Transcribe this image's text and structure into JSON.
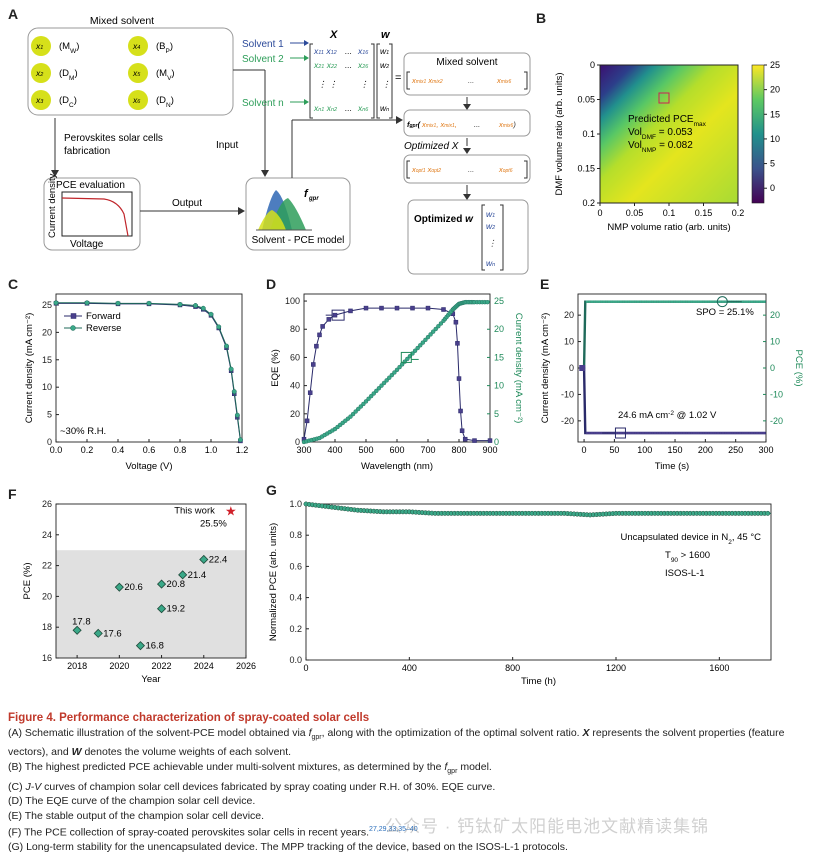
{
  "panelA": {
    "label": "A",
    "mixed_solvent_title": "Mixed solvent",
    "solvents": [
      {
        "id": "x1",
        "sub": "1",
        "prop": "(M",
        "propsub": "W",
        "col": 0
      },
      {
        "id": "x2",
        "sub": "2",
        "prop": "(D",
        "propsub": "M",
        "col": 0
      },
      {
        "id": "x3",
        "sub": "3",
        "prop": "(D",
        "propsub": "C",
        "col": 0
      },
      {
        "id": "x4",
        "sub": "4",
        "prop": "(B",
        "propsub": "P",
        "col": 1
      },
      {
        "id": "x5",
        "sub": "5",
        "prop": "(M",
        "propsub": "V",
        "col": 1
      },
      {
        "id": "x6",
        "sub": "6",
        "prop": "(D",
        "propsub": "N",
        "col": 1
      }
    ],
    "fabrication_label": "Perovskites solar cells fabrication",
    "pce_eval_title": "PCE evaluation",
    "pce_eval_ylabel": "Current density",
    "pce_eval_xlabel": "Voltage",
    "input_label": "Input",
    "output_label": "Output",
    "model_label": "Solvent - PCE model",
    "fgpr": "f",
    "fgpr_sub": "gpr",
    "matrix_x_label": "X",
    "matrix_w_label": "w",
    "solvent_rows": [
      "Solvent 1",
      "Solvent 2",
      "Solvent n"
    ],
    "mixed_solvent_box": "Mixed solvent",
    "optimized_x_label": "Optimized X",
    "optimized_w_label": "Optimized w",
    "colors": {
      "blue": "#2c4a9a",
      "green": "#2e9e5a",
      "orange": "#e07b1a",
      "node": "#d6e01a"
    }
  },
  "panelB": {
    "label": "B",
    "xlabel": "NMP volume ratio (arb. units)",
    "ylabel": "DMF volume ratio (arb. units)",
    "xticks": [
      "0",
      "0.05",
      "0.1",
      "0.15",
      "0.2"
    ],
    "yticks": [
      "0",
      "0.05",
      "0.1",
      "0.15",
      "0.2"
    ],
    "cbar_ticks": [
      "25",
      "20",
      "15",
      "10",
      "5",
      "0"
    ],
    "annotation": [
      "Predicted PCE",
      "Vol",
      "Vol"
    ],
    "ann_sub": [
      "max",
      "DMF",
      "NMP"
    ],
    "ann_vals": [
      "",
      " = 0.053",
      " = 0.082"
    ]
  },
  "chart_data": [
    {
      "type": "heatmap",
      "panel": "B",
      "title": "",
      "xlabel": "NMP volume ratio (arb. units)",
      "ylabel": "DMF volume ratio (arb. units)",
      "xlim": [
        0,
        0.2
      ],
      "ylim": [
        0,
        0.2
      ],
      "colorbar_range": [
        -3,
        25
      ],
      "optimum": {
        "NMP": 0.082,
        "DMF": 0.053,
        "PCE": 25
      }
    },
    {
      "type": "line",
      "panel": "C",
      "xlabel": "Voltage (V)",
      "ylabel": "Current density (mA cm⁻²)",
      "xlim": [
        0,
        1.2
      ],
      "ylim": [
        0,
        27
      ],
      "xticks": [
        "0.0",
        "0.2",
        "0.4",
        "0.6",
        "0.8",
        "1.0",
        "1.2"
      ],
      "yticks": [
        "0",
        "5",
        "10",
        "15",
        "20",
        "25"
      ],
      "annotation": "~30% R.H.",
      "series": [
        {
          "name": "Forward",
          "x": [
            0,
            0.2,
            0.4,
            0.6,
            0.8,
            0.9,
            0.95,
            1.0,
            1.05,
            1.1,
            1.13,
            1.15,
            1.17,
            1.19
          ],
          "y": [
            25.3,
            25.3,
            25.2,
            25.2,
            25.0,
            24.7,
            24.2,
            23.1,
            20.8,
            17.2,
            13.0,
            8.8,
            4.5,
            0.2
          ]
        },
        {
          "name": "Reverse",
          "x": [
            0,
            0.2,
            0.4,
            0.6,
            0.8,
            0.9,
            0.95,
            1.0,
            1.05,
            1.1,
            1.13,
            1.15,
            1.17,
            1.19
          ],
          "y": [
            25.4,
            25.4,
            25.3,
            25.3,
            25.1,
            24.9,
            24.4,
            23.3,
            21.0,
            17.5,
            13.3,
            9.2,
            4.9,
            0.4
          ]
        }
      ]
    },
    {
      "type": "line",
      "panel": "D",
      "xlabel": "Wavelength (nm)",
      "ylabel": "EQE (%)",
      "y2label": "Current density (mA cm⁻²)",
      "xlim": [
        300,
        900
      ],
      "ylim": [
        0,
        105
      ],
      "y2lim": [
        0,
        26.25
      ],
      "xticks": [
        "300",
        "400",
        "500",
        "600",
        "700",
        "800",
        "900"
      ],
      "yticks": [
        "0",
        "20",
        "40",
        "60",
        "80",
        "100"
      ],
      "y2ticks": [
        "0",
        "5",
        "10",
        "15",
        "20",
        "25"
      ],
      "series": [
        {
          "name": "EQE",
          "x": [
            300,
            310,
            320,
            330,
            340,
            350,
            360,
            380,
            400,
            450,
            500,
            550,
            600,
            650,
            700,
            750,
            780,
            790,
            795,
            800,
            805,
            810,
            820,
            850,
            900
          ],
          "y": [
            2,
            15,
            35,
            55,
            68,
            76,
            82,
            87,
            90,
            93,
            95,
            95,
            95,
            95,
            95,
            94,
            91,
            85,
            70,
            45,
            22,
            8,
            2,
            1,
            1
          ]
        },
        {
          "name": "Integrated Jsc",
          "x": [
            300,
            350,
            400,
            450,
            500,
            550,
            600,
            650,
            700,
            750,
            780,
            800,
            820,
            850,
            900
          ],
          "y": [
            0,
            0.7,
            2.3,
            4.5,
            7.2,
            10.0,
            12.8,
            15.7,
            18.6,
            21.5,
            23.5,
            24.5,
            24.8,
            24.8,
            24.8
          ]
        }
      ]
    },
    {
      "type": "line",
      "panel": "E",
      "xlabel": "Time (s)",
      "ylabel": "Current density (mA cm⁻²)",
      "y2label": "PCE (%)",
      "xlim": [
        -10,
        300
      ],
      "ylim": [
        -28,
        28
      ],
      "xticks": [
        "0",
        "50",
        "100",
        "150",
        "200",
        "250",
        "300"
      ],
      "yticks": [
        "20",
        "10",
        "0",
        "-10",
        "-20"
      ],
      "y2ticks": [
        "20",
        "10",
        "0",
        "-10",
        "-20"
      ],
      "annotations": [
        "SPO = 25.1%",
        "24.6 mA cm⁻² @ 1.02 V"
      ],
      "series": [
        {
          "name": "Current density",
          "x": [
            -5,
            0,
            2,
            300
          ],
          "y": [
            0,
            0,
            -24.6,
            -24.6
          ]
        },
        {
          "name": "PCE",
          "x": [
            -5,
            0,
            2,
            300
          ],
          "y": [
            0,
            0,
            25.1,
            25.1
          ]
        }
      ]
    },
    {
      "type": "scatter",
      "panel": "F",
      "xlabel": "Year",
      "ylabel": "PCE (%)",
      "xlim": [
        2017,
        2026
      ],
      "ylim": [
        16,
        26
      ],
      "xticks": [
        "2018",
        "2020",
        "2022",
        "2024",
        "2026"
      ],
      "yticks": [
        "16",
        "18",
        "20",
        "22",
        "24",
        "26"
      ],
      "points": [
        {
          "x": 2018,
          "y": 17.8,
          "label": "17.8"
        },
        {
          "x": 2019,
          "y": 17.6,
          "label": "17.6"
        },
        {
          "x": 2020,
          "y": 20.6,
          "label": "20.6"
        },
        {
          "x": 2021,
          "y": 16.8,
          "label": "16.8"
        },
        {
          "x": 2022,
          "y": 19.2,
          "label": "19.2"
        },
        {
          "x": 2022,
          "y": 20.8,
          "label": "20.8"
        },
        {
          "x": 2023,
          "y": 21.4,
          "label": "21.4"
        },
        {
          "x": 2024,
          "y": 22.4,
          "label": "22.4"
        }
      ],
      "this_work": {
        "x": 2025,
        "y": 25.5,
        "label": "This work",
        "value": "25.5%"
      },
      "shaded_below": 23
    },
    {
      "type": "line",
      "panel": "G",
      "xlabel": "Time (h)",
      "ylabel": "Normalized PCE (arb. units)",
      "xlim": [
        0,
        1800
      ],
      "ylim": [
        0,
        1.0
      ],
      "xticks": [
        "0",
        "400",
        "800",
        "1200",
        "1600"
      ],
      "yticks": [
        "1.0",
        "0.8",
        "0.6",
        "0.4",
        "0.2",
        "0.0"
      ],
      "annotations": [
        "Uncapsulated device in N",
        "T",
        "ISOS-L-1"
      ],
      "series": [
        {
          "name": "MPP tracking",
          "x": [
            0,
            100,
            200,
            300,
            400,
            500,
            600,
            700,
            800,
            900,
            1000,
            1100,
            1200,
            1300,
            1400,
            1500,
            1600,
            1700,
            1800
          ],
          "y": [
            1.0,
            0.98,
            0.96,
            0.95,
            0.95,
            0.94,
            0.94,
            0.94,
            0.94,
            0.94,
            0.94,
            0.93,
            0.94,
            0.94,
            0.94,
            0.94,
            0.94,
            0.94,
            0.94
          ]
        }
      ]
    }
  ],
  "panelC": {
    "label": "C",
    "legend": [
      "Forward",
      "Reverse"
    ],
    "annotation": "~30% R.H."
  },
  "panelD": {
    "label": "D"
  },
  "panelE": {
    "label": "E",
    "spo": "SPO = 25.1%",
    "jv": "24.6 mA cm",
    "jv_sup": "-2",
    "jv_tail": " @ 1.02 V"
  },
  "panelF": {
    "label": "F",
    "this_work": "This work",
    "this_val": "25.5%"
  },
  "panelG": {
    "label": "G",
    "ann1": "Uncapsulated device in N",
    "ann1_sub": "2",
    "ann1_tail": ", 45 °C",
    "ann2": "T",
    "ann2_sub": "90",
    "ann2_tail": " > 1600",
    "ann3": "ISOS-L-1"
  },
  "caption": {
    "title": "Figure 4.  Performance characterization of spray-coated solar cells",
    "a1": "(A) Schematic illustration of the solvent-PCE model obtained via ",
    "a_f": "f",
    "a_fsub": "gpr",
    "a2": ", along with the optimization of the optimal solvent ratio. ",
    "a_X": "X",
    "a3": " represents the solvent properties (feature vectors), and ",
    "a_W": "W",
    "a4": " denotes the volume weights of each solvent.",
    "b1": "(B) The highest predicted PCE achievable under multi-solvent mixtures, as determined by the ",
    "b_f": "f",
    "b_fsub": "gpr",
    "b2": " model.",
    "c1": "(C) ",
    "c_jv": "J-V",
    "c2": " curves of champion solar cell devices fabricated by spray coating under R.H. of 30%. EQE curve.",
    "d": "(D) The EQE curve of the champion solar cell device.",
    "e": "(E) The stable output of the champion solar cell device.",
    "f1": "(F) The PCE collection of spray-coated perovskites solar cells in recent years.",
    "f_refs": "27,29,33,35–40",
    "g": "(G) Long-term stability for the unencapsulated device. The MPP tracking of the device, based on the ISOS-L-1 protocols."
  },
  "watermark": "公众号 · 钙钛矿太阳能电池文献精读集锦"
}
